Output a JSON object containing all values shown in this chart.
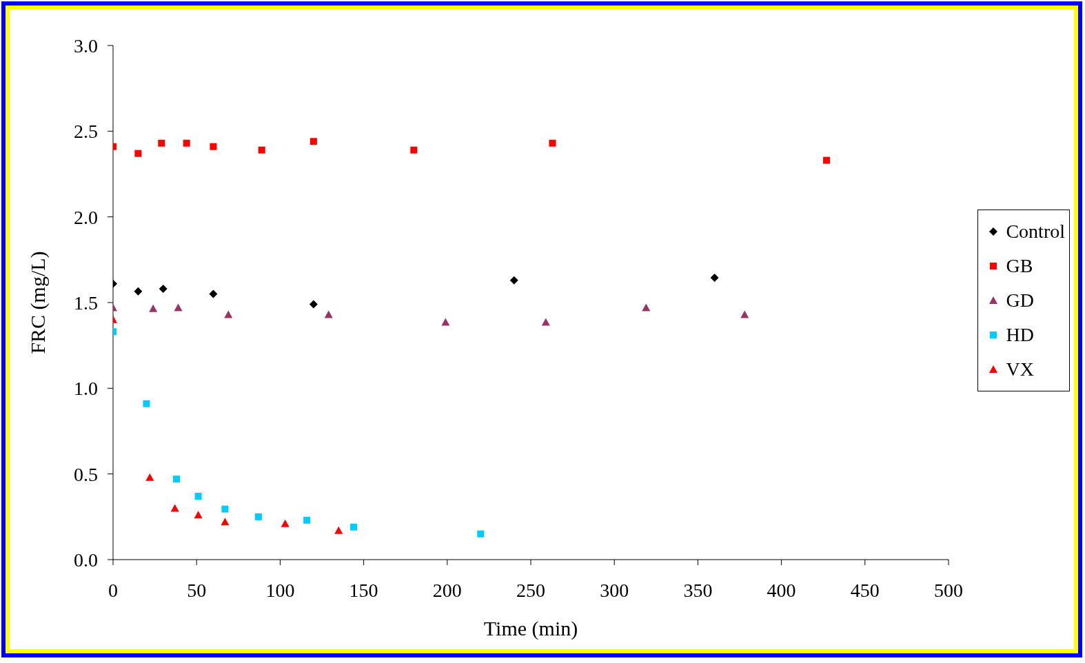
{
  "chart_data": {
    "type": "scatter",
    "xlabel": "Time (min)",
    "ylabel": "FRC (mg/L)",
    "xlim": [
      0,
      500
    ],
    "xticks": [
      0,
      50,
      100,
      150,
      200,
      250,
      300,
      350,
      400,
      450,
      500
    ],
    "ylim": [
      0,
      3
    ],
    "yticks": [
      {
        "value": 0,
        "label": "0.0"
      },
      {
        "value": 0.5,
        "label": "0.5"
      },
      {
        "value": 1,
        "label": "1.0"
      },
      {
        "value": 1.5,
        "label": "1.5"
      },
      {
        "value": 2,
        "label": "2.0"
      },
      {
        "value": 2.5,
        "label": "2.5"
      },
      {
        "value": 3,
        "label": "3.0"
      }
    ],
    "grid": false,
    "legend": "right",
    "series": [
      {
        "name": "Control",
        "color": "#000000",
        "marker": "diamond",
        "x": [
          0,
          15,
          30,
          60,
          120,
          240,
          360
        ],
        "values": [
          1.61,
          1.565,
          1.58,
          1.55,
          1.49,
          1.63,
          1.645
        ]
      },
      {
        "name": "GB",
        "color": "#ff0000",
        "marker": "square",
        "x": [
          0,
          15,
          29,
          44,
          60,
          89,
          120,
          180,
          263,
          427
        ],
        "values": [
          2.41,
          2.37,
          2.43,
          2.43,
          2.41,
          2.39,
          2.44,
          2.39,
          2.43,
          2.33
        ]
      },
      {
        "name": "GD",
        "color": "#993366",
        "marker": "triangle",
        "x": [
          0,
          24,
          39,
          69,
          129,
          199,
          259,
          319,
          378
        ],
        "values": [
          1.47,
          1.465,
          1.47,
          1.43,
          1.43,
          1.385,
          1.385,
          1.47,
          1.43
        ]
      },
      {
        "name": "HD",
        "color": "#00ccff",
        "marker": "square",
        "x": [
          0,
          20,
          38,
          51,
          67,
          87,
          116,
          144,
          220
        ],
        "values": [
          1.33,
          0.91,
          0.47,
          0.37,
          0.295,
          0.25,
          0.23,
          0.19,
          0.15
        ]
      },
      {
        "name": "VX",
        "color": "#ff0000",
        "marker": "triangle",
        "x": [
          0,
          22,
          37,
          51,
          67,
          103,
          135
        ],
        "values": [
          1.4,
          0.48,
          0.3,
          0.26,
          0.22,
          0.21,
          0.17
        ]
      }
    ]
  }
}
